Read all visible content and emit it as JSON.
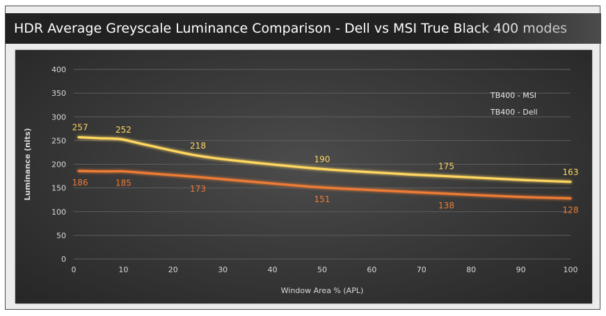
{
  "chart_data": {
    "type": "line",
    "title": "HDR Average Greyscale Luminance Comparison - Dell vs MSI True Black 400 modes",
    "xlabel": "Window Area % (APL)",
    "ylabel": "Luminance (nits)",
    "xlim": [
      0,
      100
    ],
    "ylim": [
      0,
      400
    ],
    "x_ticks": [
      "0",
      "10",
      "20",
      "30",
      "40",
      "50",
      "60",
      "70",
      "80",
      "90",
      "100"
    ],
    "y_ticks": [
      "0",
      "50",
      "100",
      "150",
      "200",
      "250",
      "300",
      "350",
      "400"
    ],
    "grid": "horizontal",
    "legend_position": "top-right",
    "series": [
      {
        "name": "TB400 - MSI",
        "color": "#ffd760",
        "x": [
          1,
          5,
          8,
          10,
          15,
          25,
          35,
          50,
          65,
          75,
          90,
          100
        ],
        "values": [
          257,
          255,
          254,
          252,
          240,
          218,
          205,
          190,
          180,
          175,
          167,
          163
        ],
        "labels": [
          {
            "x": 1,
            "value": 257,
            "text": "257"
          },
          {
            "x": 10,
            "value": 252,
            "text": "252"
          },
          {
            "x": 25,
            "value": 218,
            "text": "218"
          },
          {
            "x": 50,
            "value": 190,
            "text": "190"
          },
          {
            "x": 75,
            "value": 175,
            "text": "175"
          },
          {
            "x": 100,
            "value": 163,
            "text": "163"
          }
        ]
      },
      {
        "name": "TB400 - Dell",
        "color": "#ee7c34",
        "x": [
          1,
          5,
          8,
          10,
          15,
          25,
          35,
          50,
          65,
          75,
          90,
          100
        ],
        "values": [
          186,
          185,
          185,
          185,
          181,
          173,
          164,
          151,
          143,
          138,
          131,
          128
        ],
        "labels": [
          {
            "x": 1,
            "value": 186,
            "text": "186"
          },
          {
            "x": 10,
            "value": 185,
            "text": "185"
          },
          {
            "x": 25,
            "value": 173,
            "text": "173"
          },
          {
            "x": 50,
            "value": 151,
            "text": "151"
          },
          {
            "x": 75,
            "value": 138,
            "text": "138"
          },
          {
            "x": 100,
            "value": 128,
            "text": "128"
          }
        ]
      }
    ]
  }
}
